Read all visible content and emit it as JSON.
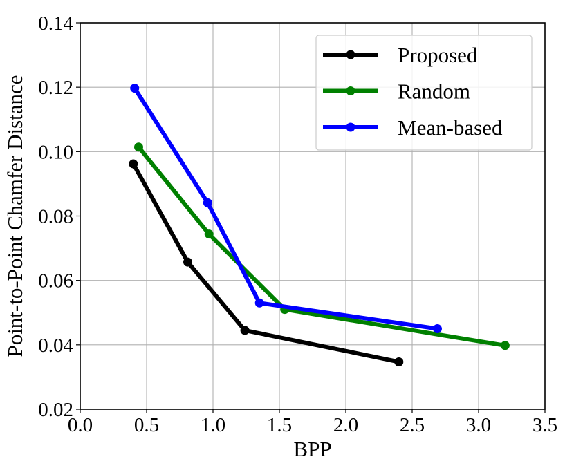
{
  "chart_data": {
    "type": "line",
    "title": "",
    "xlabel": "BPP",
    "ylabel": "Point-to-Point Chamfer Distance",
    "xlim": [
      0.0,
      3.5
    ],
    "ylim": [
      0.02,
      0.14
    ],
    "xticks": [
      "0.0",
      "0.5",
      "1.0",
      "1.5",
      "2.0",
      "2.5",
      "3.0",
      "3.5"
    ],
    "yticks": [
      "0.02",
      "0.04",
      "0.06",
      "0.08",
      "0.10",
      "0.12",
      "0.14"
    ],
    "grid": true,
    "legend_position": "top-right",
    "series": [
      {
        "name": "Proposed",
        "color": "#000000",
        "x": [
          0.4,
          0.81,
          1.24,
          2.4
        ],
        "y": [
          0.0962,
          0.0657,
          0.0445,
          0.0347
        ]
      },
      {
        "name": "Random",
        "color": "#008000",
        "x": [
          0.44,
          0.97,
          1.54,
          3.2
        ],
        "y": [
          0.1014,
          0.0744,
          0.051,
          0.0398
        ]
      },
      {
        "name": "Mean-based",
        "color": "#0000ff",
        "x": [
          0.41,
          0.96,
          1.35,
          2.69
        ],
        "y": [
          0.1197,
          0.0841,
          0.053,
          0.045
        ]
      }
    ]
  }
}
